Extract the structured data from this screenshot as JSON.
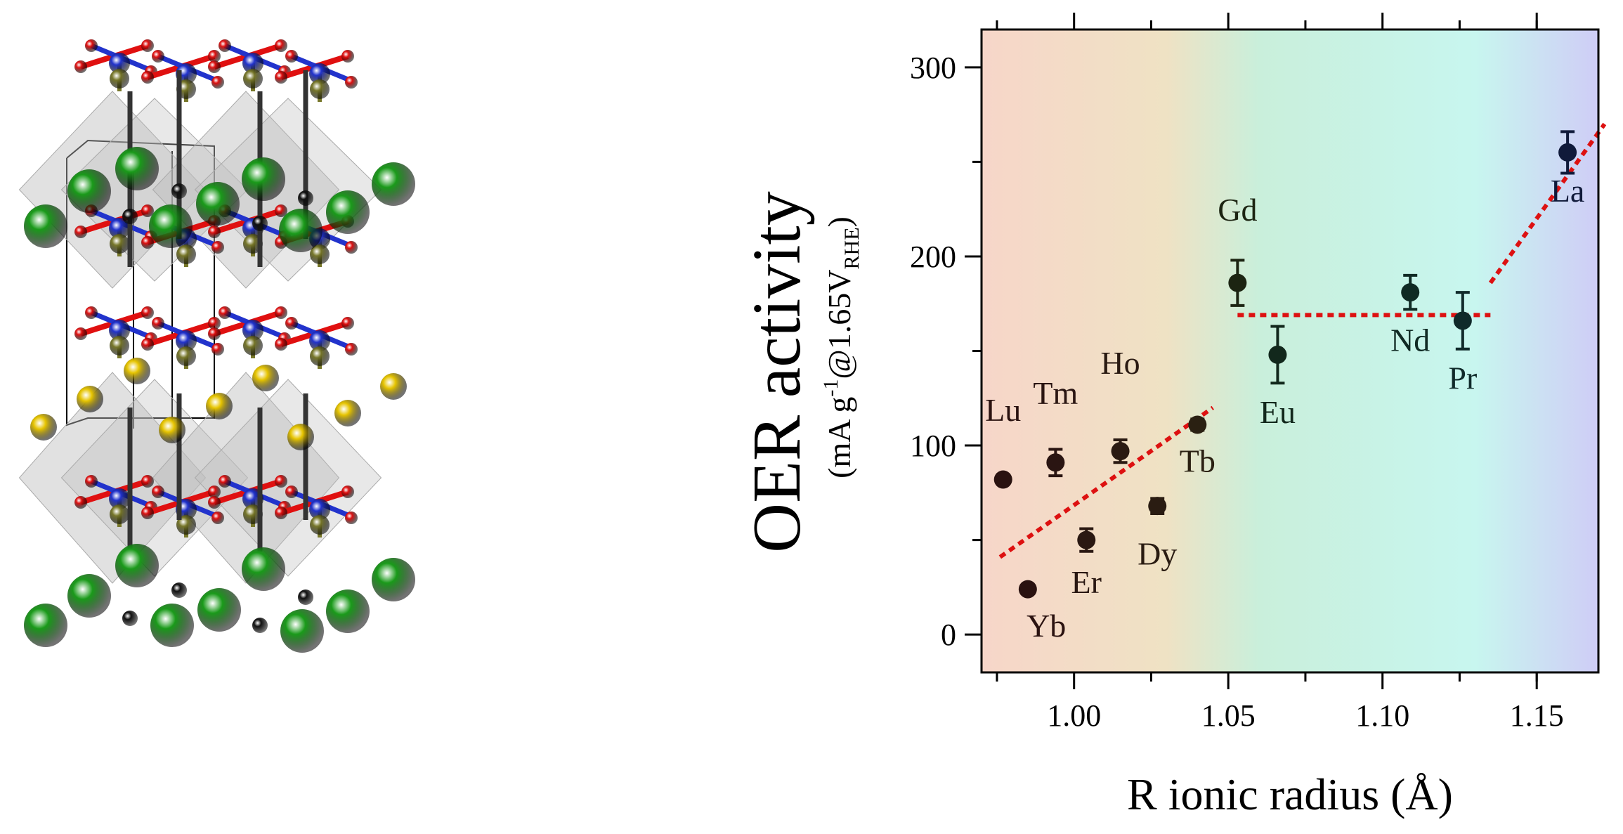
{
  "structure_panel": {
    "description_icon": "crystal-structure-illustration",
    "atom_colors": {
      "large_cation": "#1a9a1a",
      "interlayer_cation": "#e6c400",
      "transition_metal": "#2233cc",
      "oxygen": "#e01010",
      "apical_atom": "#111111",
      "tetrahedral_atom": "#77772a",
      "polyhedra": "#bdbdbd"
    }
  },
  "chart_data": {
    "type": "scatter",
    "xlabel": "R ionic radius (Å)",
    "ylabel_main": "OER activity",
    "ylabel_sub": {
      "open": "(mA g",
      "sup": "-1",
      "mid": "@1.65V",
      "sub": "RHE",
      "close": ")"
    },
    "xlim": [
      0.97,
      1.17
    ],
    "ylim": [
      -20,
      320
    ],
    "x_ticks": [
      {
        "value": 1.0,
        "label": "1.00"
      },
      {
        "value": 1.05,
        "label": "1.05"
      },
      {
        "value": 1.1,
        "label": "1.10"
      },
      {
        "value": 1.15,
        "label": "1.15"
      }
    ],
    "y_ticks": [
      {
        "value": 0,
        "label": "0"
      },
      {
        "value": 100,
        "label": "100"
      },
      {
        "value": 200,
        "label": "200"
      },
      {
        "value": 300,
        "label": "300"
      }
    ],
    "points": [
      {
        "label": "Lu",
        "x": 0.977,
        "y": 82,
        "err": 0,
        "color": "#2a1210",
        "label_x": 0.977,
        "label_y": 113
      },
      {
        "label": "Yb",
        "x": 0.985,
        "y": 24,
        "err": 0,
        "color": "#2a1210",
        "label_x": 0.991,
        "label_y": -1
      },
      {
        "label": "Tm",
        "x": 0.994,
        "y": 91,
        "err": 7,
        "color": "#2a1512",
        "label_x": 0.994,
        "label_y": 122
      },
      {
        "label": "Er",
        "x": 1.004,
        "y": 50,
        "err": 6,
        "color": "#2a1812",
        "label_x": 1.004,
        "label_y": 22
      },
      {
        "label": "Ho",
        "x": 1.015,
        "y": 97,
        "err": 6,
        "color": "#2a1a12",
        "label_x": 1.015,
        "label_y": 138
      },
      {
        "label": "Dy",
        "x": 1.027,
        "y": 68,
        "err": 4,
        "color": "#2a1c12",
        "label_x": 1.027,
        "label_y": 37
      },
      {
        "label": "Tb",
        "x": 1.04,
        "y": 111,
        "err": 3,
        "color": "#2a2012",
        "label_x": 1.04,
        "label_y": 86
      },
      {
        "label": "Gd",
        "x": 1.053,
        "y": 186,
        "err": 12,
        "color": "#1c2412",
        "label_x": 1.053,
        "label_y": 219
      },
      {
        "label": "Eu",
        "x": 1.066,
        "y": 148,
        "err": 15,
        "color": "#12281c",
        "label_x": 1.066,
        "label_y": 112
      },
      {
        "label": "Nd",
        "x": 1.109,
        "y": 181,
        "err": 9,
        "color": "#102a24",
        "label_x": 1.109,
        "label_y": 150
      },
      {
        "label": "Pr",
        "x": 1.126,
        "y": 166,
        "err": 15,
        "color": "#102a2a",
        "label_x": 1.126,
        "label_y": 130
      },
      {
        "label": "La",
        "x": 1.16,
        "y": 255,
        "err": 11,
        "color": "#101a3a",
        "label_x": 1.16,
        "label_y": 229
      }
    ],
    "trend_lines": [
      {
        "x1": 0.976,
        "y1": 41,
        "x2": 1.045,
        "y2": 120
      },
      {
        "x1": 1.053,
        "y1": 169,
        "x2": 1.135,
        "y2": 169
      },
      {
        "x1": 1.135,
        "y1": 186,
        "x2": 1.172,
        "y2": 270
      }
    ],
    "trend_color": "#dd1111",
    "background_gradient": [
      "#f7d6c9",
      "#efe2c4",
      "#c9efdb",
      "#c8f6ef",
      "#cfcdf6"
    ],
    "grid": false
  }
}
